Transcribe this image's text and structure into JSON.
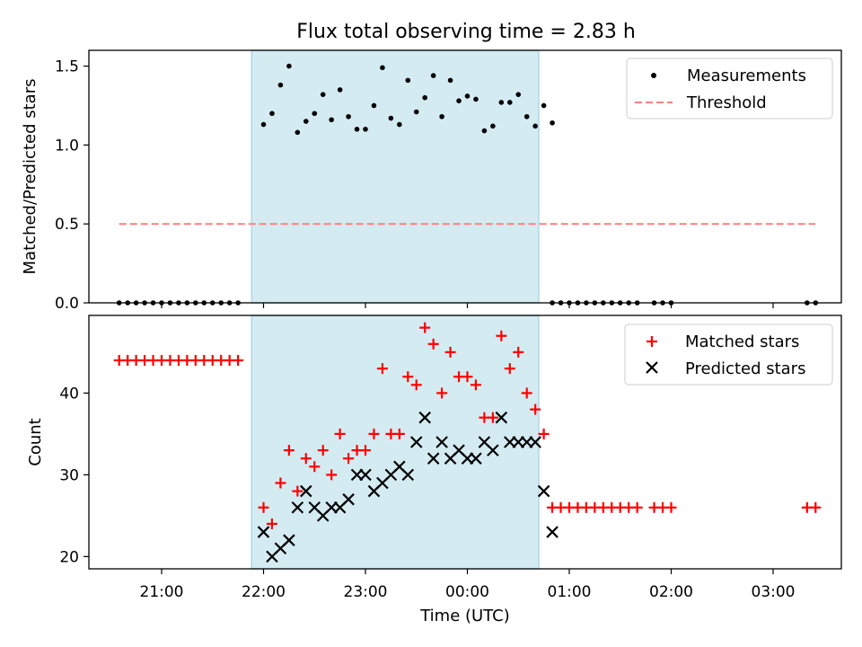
{
  "title": "Flux total observing time = 2.83 h",
  "xlabel": "Time (UTC)",
  "x_ticks": [
    "21:00",
    "22:00",
    "23:00",
    "00:00",
    "01:00",
    "02:00",
    "03:00"
  ],
  "colors": {
    "highlight": "#add8e6",
    "measurement": "#000000",
    "threshold": "#ff7f7f",
    "matched": "#ff0000",
    "predicted": "#000000"
  },
  "chart_data": [
    {
      "type": "scatter",
      "ylabel": "Matched/Predicted stars",
      "ylim": [
        0,
        1.6
      ],
      "y_ticks": [
        "0.0",
        "0.5",
        "1.0",
        "1.5"
      ],
      "x_range": [
        "20:30",
        "03:50"
      ],
      "highlight_span": [
        "21:53",
        "00:42"
      ],
      "legend_position": "top-right",
      "series": [
        {
          "name": "Measurements",
          "marker": "dot",
          "points": [
            [
              "20:35",
              0
            ],
            [
              "20:40",
              0
            ],
            [
              "20:45",
              0
            ],
            [
              "20:50",
              0
            ],
            [
              "20:55",
              0
            ],
            [
              "21:00",
              0
            ],
            [
              "21:05",
              0
            ],
            [
              "21:10",
              0
            ],
            [
              "21:15",
              0
            ],
            [
              "21:20",
              0
            ],
            [
              "21:25",
              0
            ],
            [
              "21:30",
              0
            ],
            [
              "21:35",
              0
            ],
            [
              "21:40",
              0
            ],
            [
              "21:45",
              0
            ],
            [
              "22:00",
              1.13
            ],
            [
              "22:05",
              1.2
            ],
            [
              "22:10",
              1.38
            ],
            [
              "22:15",
              1.5
            ],
            [
              "22:20",
              1.08
            ],
            [
              "22:25",
              1.15
            ],
            [
              "22:30",
              1.2
            ],
            [
              "22:35",
              1.32
            ],
            [
              "22:40",
              1.16
            ],
            [
              "22:45",
              1.35
            ],
            [
              "22:50",
              1.18
            ],
            [
              "22:55",
              1.1
            ],
            [
              "23:00",
              1.1
            ],
            [
              "23:05",
              1.25
            ],
            [
              "23:10",
              1.49
            ],
            [
              "23:15",
              1.17
            ],
            [
              "23:20",
              1.13
            ],
            [
              "23:25",
              1.41
            ],
            [
              "23:30",
              1.21
            ],
            [
              "23:35",
              1.3
            ],
            [
              "23:40",
              1.44
            ],
            [
              "23:45",
              1.18
            ],
            [
              "23:50",
              1.41
            ],
            [
              "23:55",
              1.28
            ],
            [
              "00:00",
              1.31
            ],
            [
              "00:05",
              1.29
            ],
            [
              "00:10",
              1.09
            ],
            [
              "00:15",
              1.12
            ],
            [
              "00:20",
              1.27
            ],
            [
              "00:25",
              1.27
            ],
            [
              "00:30",
              1.32
            ],
            [
              "00:35",
              1.18
            ],
            [
              "00:40",
              1.12
            ],
            [
              "00:45",
              1.25
            ],
            [
              "00:50",
              1.14
            ],
            [
              "00:50",
              0
            ],
            [
              "00:55",
              0
            ],
            [
              "01:00",
              0
            ],
            [
              "01:05",
              0
            ],
            [
              "01:10",
              0
            ],
            [
              "01:15",
              0
            ],
            [
              "01:20",
              0
            ],
            [
              "01:25",
              0
            ],
            [
              "01:30",
              0
            ],
            [
              "01:35",
              0
            ],
            [
              "01:40",
              0
            ],
            [
              "01:50",
              0
            ],
            [
              "01:55",
              0
            ],
            [
              "02:00",
              0
            ],
            [
              "03:20",
              0
            ],
            [
              "03:25",
              0
            ]
          ]
        },
        {
          "name": "Threshold",
          "style": "dashed-line",
          "x": [
            "20:35",
            "03:25"
          ],
          "y": [
            0.5,
            0.5
          ]
        }
      ]
    },
    {
      "type": "scatter",
      "ylabel": "Count",
      "ylim": [
        18.5,
        49.5
      ],
      "y_ticks": [
        "20",
        "30",
        "40"
      ],
      "x_range": [
        "20:30",
        "03:50"
      ],
      "highlight_span": [
        "21:53",
        "00:42"
      ],
      "legend_position": "top-right",
      "series": [
        {
          "name": "Matched stars",
          "marker": "plus",
          "points": [
            [
              "20:35",
              44
            ],
            [
              "20:40",
              44
            ],
            [
              "20:45",
              44
            ],
            [
              "20:50",
              44
            ],
            [
              "20:55",
              44
            ],
            [
              "21:00",
              44
            ],
            [
              "21:05",
              44
            ],
            [
              "21:10",
              44
            ],
            [
              "21:15",
              44
            ],
            [
              "21:20",
              44
            ],
            [
              "21:25",
              44
            ],
            [
              "21:30",
              44
            ],
            [
              "21:35",
              44
            ],
            [
              "21:40",
              44
            ],
            [
              "21:45",
              44
            ],
            [
              "22:00",
              26
            ],
            [
              "22:05",
              24
            ],
            [
              "22:10",
              29
            ],
            [
              "22:15",
              33
            ],
            [
              "22:20",
              28
            ],
            [
              "22:25",
              32
            ],
            [
              "22:30",
              31
            ],
            [
              "22:35",
              33
            ],
            [
              "22:40",
              30
            ],
            [
              "22:45",
              35
            ],
            [
              "22:50",
              32
            ],
            [
              "22:55",
              33
            ],
            [
              "23:00",
              33
            ],
            [
              "23:05",
              35
            ],
            [
              "23:10",
              43
            ],
            [
              "23:15",
              35
            ],
            [
              "23:20",
              35
            ],
            [
              "23:25",
              42
            ],
            [
              "23:30",
              41
            ],
            [
              "23:35",
              48
            ],
            [
              "23:40",
              46
            ],
            [
              "23:45",
              40
            ],
            [
              "23:50",
              45
            ],
            [
              "23:55",
              42
            ],
            [
              "00:00",
              42
            ],
            [
              "00:05",
              41
            ],
            [
              "00:10",
              37
            ],
            [
              "00:15",
              37
            ],
            [
              "00:20",
              47
            ],
            [
              "00:25",
              43
            ],
            [
              "00:30",
              45
            ],
            [
              "00:35",
              40
            ],
            [
              "00:40",
              38
            ],
            [
              "00:45",
              35
            ],
            [
              "00:50",
              26
            ],
            [
              "00:55",
              26
            ],
            [
              "01:00",
              26
            ],
            [
              "01:05",
              26
            ],
            [
              "01:10",
              26
            ],
            [
              "01:15",
              26
            ],
            [
              "01:20",
              26
            ],
            [
              "01:25",
              26
            ],
            [
              "01:30",
              26
            ],
            [
              "01:35",
              26
            ],
            [
              "01:40",
              26
            ],
            [
              "01:50",
              26
            ],
            [
              "01:55",
              26
            ],
            [
              "02:00",
              26
            ],
            [
              "03:20",
              26
            ],
            [
              "03:25",
              26
            ]
          ]
        },
        {
          "name": "Predicted stars",
          "marker": "x",
          "points": [
            [
              "22:00",
              23
            ],
            [
              "22:05",
              20
            ],
            [
              "22:10",
              21
            ],
            [
              "22:15",
              22
            ],
            [
              "22:20",
              26
            ],
            [
              "22:25",
              28
            ],
            [
              "22:30",
              26
            ],
            [
              "22:35",
              25
            ],
            [
              "22:40",
              26
            ],
            [
              "22:45",
              26
            ],
            [
              "22:50",
              27
            ],
            [
              "22:55",
              30
            ],
            [
              "23:00",
              30
            ],
            [
              "23:05",
              28
            ],
            [
              "23:10",
              29
            ],
            [
              "23:15",
              30
            ],
            [
              "23:20",
              31
            ],
            [
              "23:25",
              30
            ],
            [
              "23:30",
              34
            ],
            [
              "23:35",
              37
            ],
            [
              "23:40",
              32
            ],
            [
              "23:45",
              34
            ],
            [
              "23:50",
              32
            ],
            [
              "23:55",
              33
            ],
            [
              "00:00",
              32
            ],
            [
              "00:05",
              32
            ],
            [
              "00:10",
              34
            ],
            [
              "00:15",
              33
            ],
            [
              "00:20",
              37
            ],
            [
              "00:25",
              34
            ],
            [
              "00:30",
              34
            ],
            [
              "00:35",
              34
            ],
            [
              "00:40",
              34
            ],
            [
              "00:45",
              28
            ],
            [
              "00:50",
              23
            ]
          ]
        }
      ]
    }
  ]
}
